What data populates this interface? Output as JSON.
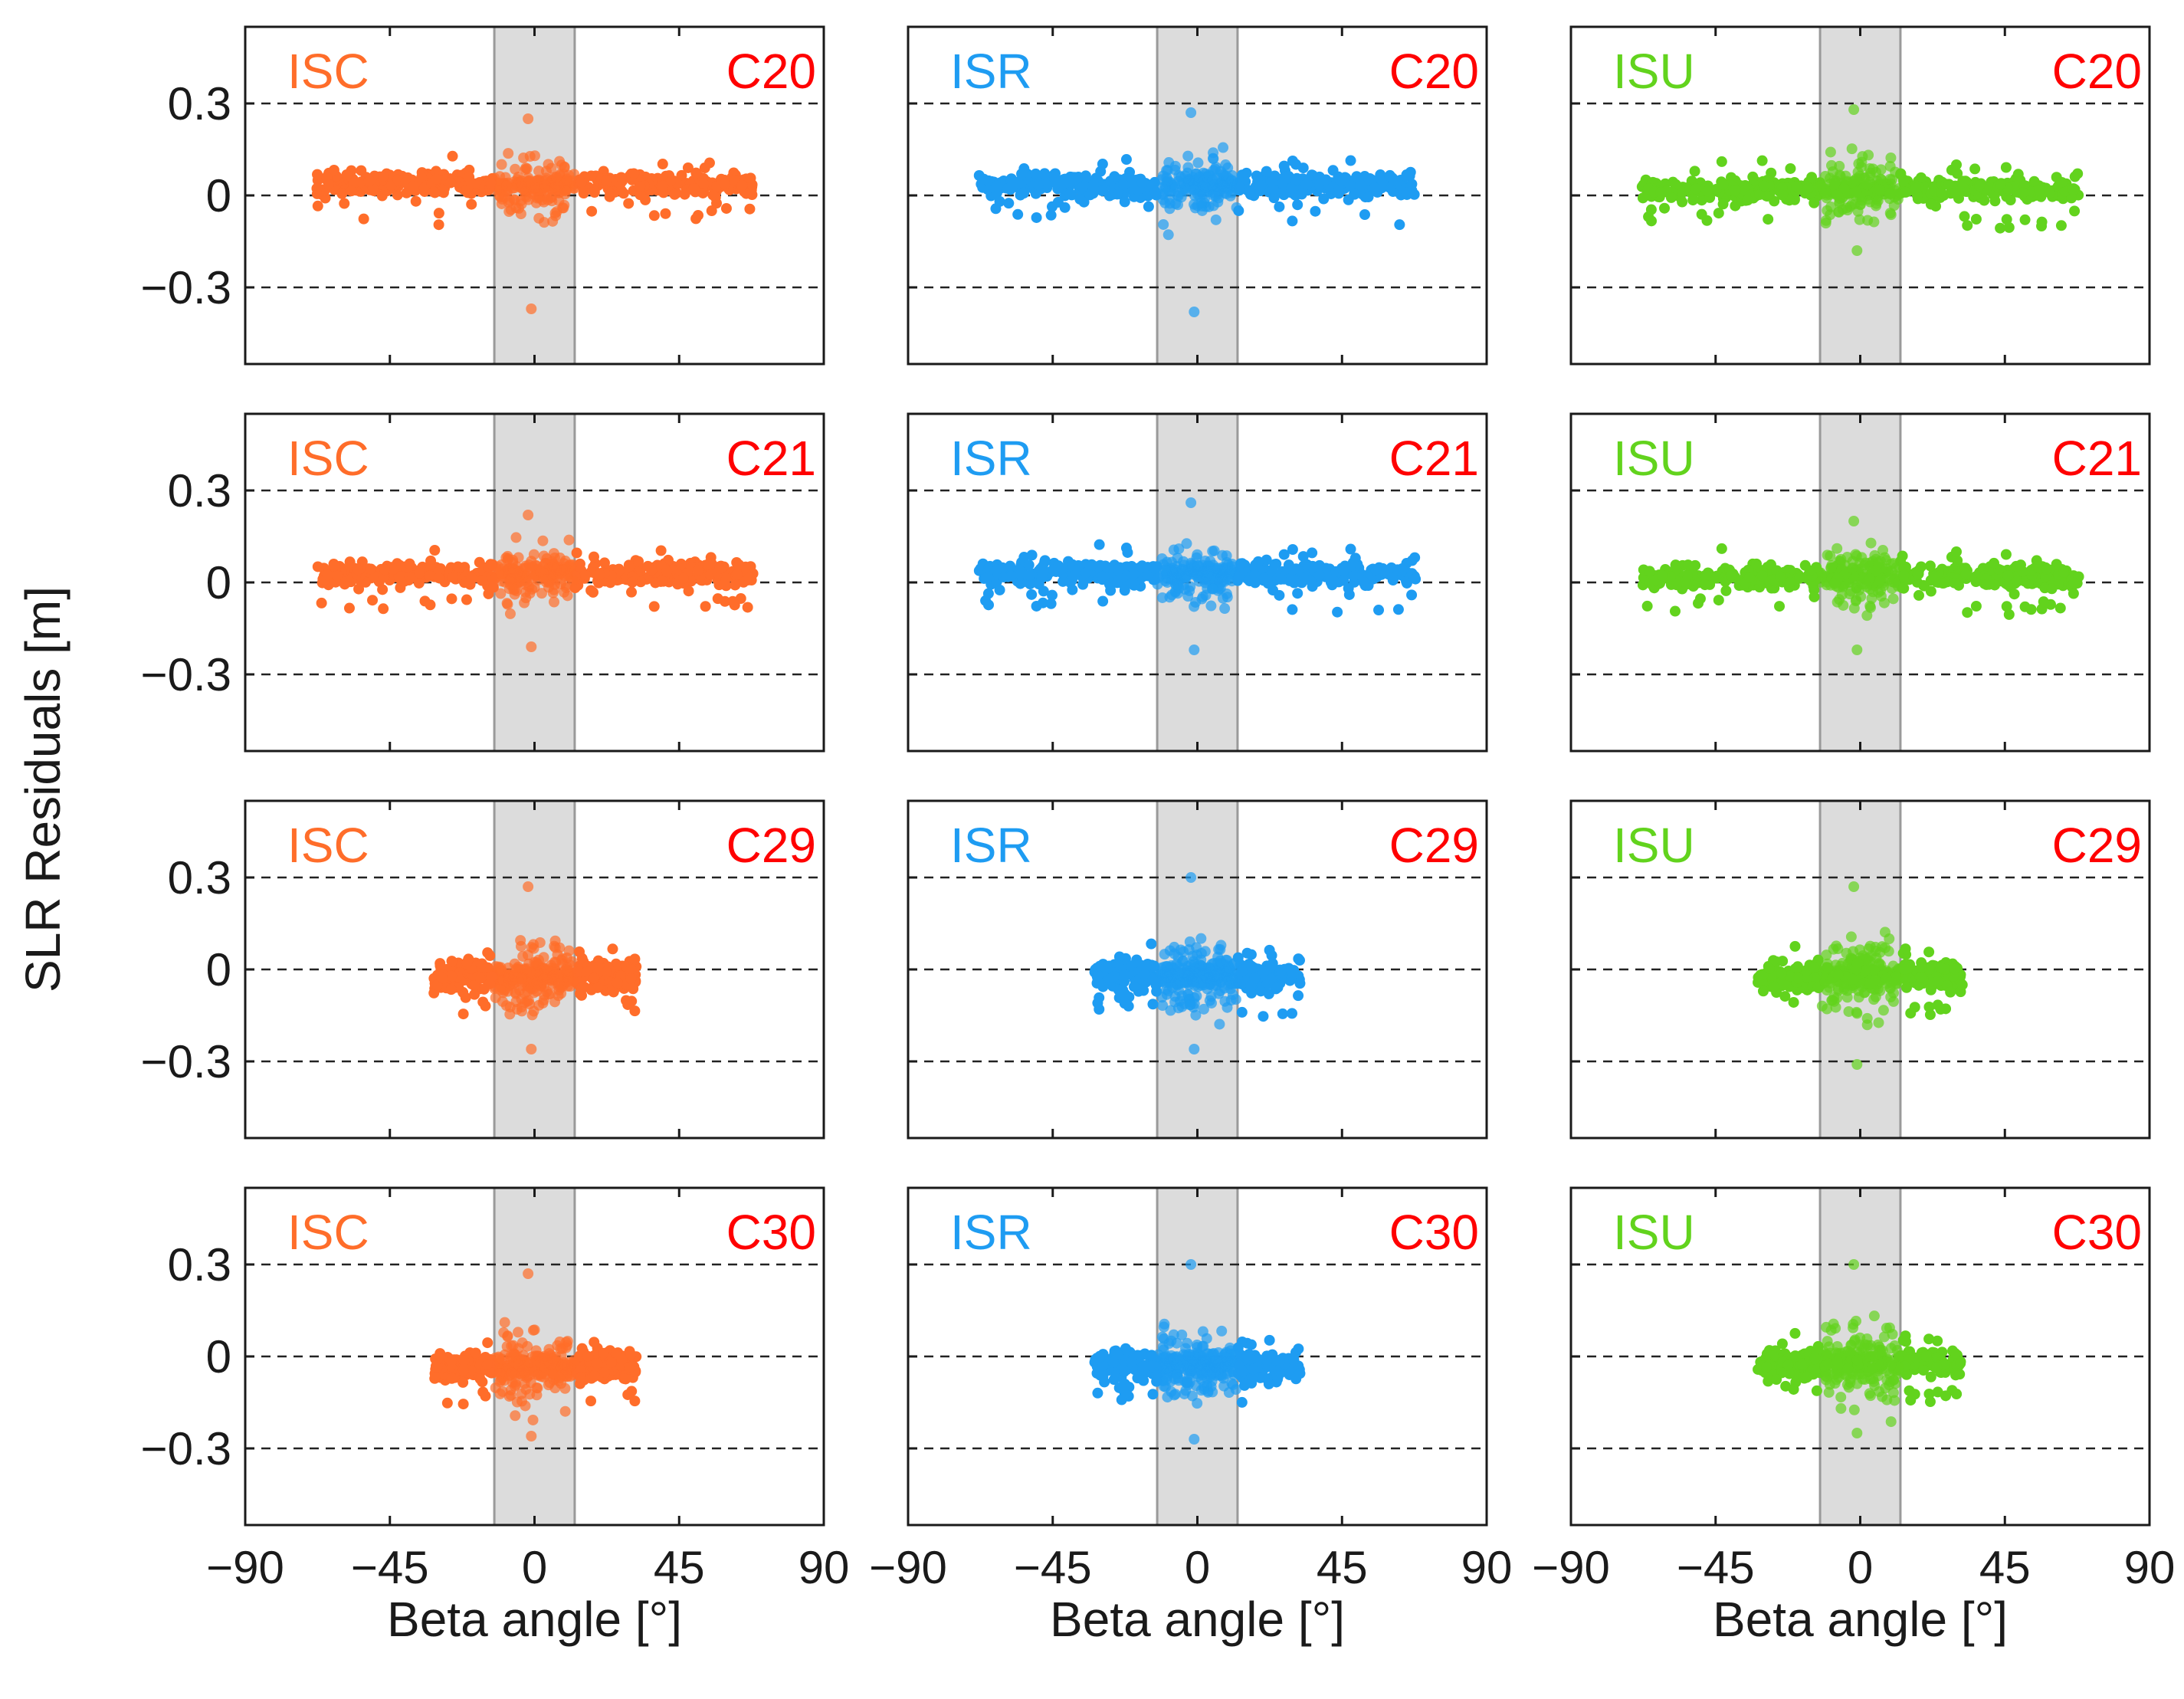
{
  "figure": {
    "ylabel": "SLR Residuals [m]",
    "xlabel": "Beta angle [°]"
  },
  "colors": {
    "ISC": "#ff6d2a",
    "ISR": "#1e9cf2",
    "ISU": "#62d31d",
    "satellite_label": "#ff0000",
    "eclipse_band": "#dcdcdc",
    "eclipse_band_edge": "#9a9a9a",
    "axis": "#1a1a1a"
  },
  "chart_data": {
    "type": "scatter",
    "title": "",
    "xlabel": "Beta angle [°]",
    "ylabel": "SLR Residuals [m]",
    "xlim": [
      -90,
      90
    ],
    "ylim": [
      -0.55,
      0.55
    ],
    "xticks": [
      -90,
      -45,
      0,
      45,
      90
    ],
    "xtick_labels": [
      "−90",
      "−45",
      "0",
      "45",
      "90"
    ],
    "yticks": [
      0.3,
      0,
      -0.3
    ],
    "ytick_labels": [
      "0.3",
      "0",
      "−0.3"
    ],
    "reference_lines": [
      0.3,
      0,
      -0.3
    ],
    "eclipse_band": [
      -12.5,
      12.5
    ],
    "grid": false,
    "panels": [
      {
        "model": "ISC",
        "sat": "C20",
        "beta_range": [
          -68,
          68
        ],
        "mean": 0.035,
        "spread": 0.03,
        "outlier_min": -0.37,
        "outlier_max": 0.25
      },
      {
        "model": "ISR",
        "sat": "C20",
        "beta_range": [
          -68,
          68
        ],
        "mean": 0.035,
        "spread": 0.03,
        "outlier_min": -0.38,
        "outlier_max": 0.27
      },
      {
        "model": "ISU",
        "sat": "C20",
        "beta_range": [
          -68,
          68
        ],
        "mean": 0.02,
        "spread": 0.03,
        "outlier_min": -0.18,
        "outlier_max": 0.28
      },
      {
        "model": "ISC",
        "sat": "C21",
        "beta_range": [
          -68,
          68
        ],
        "mean": 0.03,
        "spread": 0.03,
        "outlier_min": -0.21,
        "outlier_max": 0.22
      },
      {
        "model": "ISR",
        "sat": "C21",
        "beta_range": [
          -68,
          68
        ],
        "mean": 0.03,
        "spread": 0.03,
        "outlier_min": -0.22,
        "outlier_max": 0.26
      },
      {
        "model": "ISU",
        "sat": "C21",
        "beta_range": [
          -68,
          68
        ],
        "mean": 0.02,
        "spread": 0.03,
        "outlier_min": -0.22,
        "outlier_max": 0.2
      },
      {
        "model": "ISC",
        "sat": "C29",
        "beta_range": [
          -32,
          32
        ],
        "mean": -0.02,
        "spread": 0.04,
        "outlier_min": -0.26,
        "outlier_max": 0.27
      },
      {
        "model": "ISR",
        "sat": "C29",
        "beta_range": [
          -32,
          32
        ],
        "mean": -0.02,
        "spread": 0.04,
        "outlier_min": -0.26,
        "outlier_max": 0.3
      },
      {
        "model": "ISU",
        "sat": "C29",
        "beta_range": [
          -32,
          32
        ],
        "mean": -0.02,
        "spread": 0.04,
        "outlier_min": -0.31,
        "outlier_max": 0.27
      },
      {
        "model": "ISC",
        "sat": "C30",
        "beta_range": [
          -32,
          32
        ],
        "mean": -0.03,
        "spread": 0.04,
        "outlier_min": -0.26,
        "outlier_max": 0.27
      },
      {
        "model": "ISR",
        "sat": "C30",
        "beta_range": [
          -32,
          32
        ],
        "mean": -0.03,
        "spread": 0.04,
        "outlier_min": -0.27,
        "outlier_max": 0.3
      },
      {
        "model": "ISU",
        "sat": "C30",
        "beta_range": [
          -32,
          32
        ],
        "mean": -0.02,
        "spread": 0.04,
        "outlier_min": -0.25,
        "outlier_max": 0.3
      }
    ]
  }
}
